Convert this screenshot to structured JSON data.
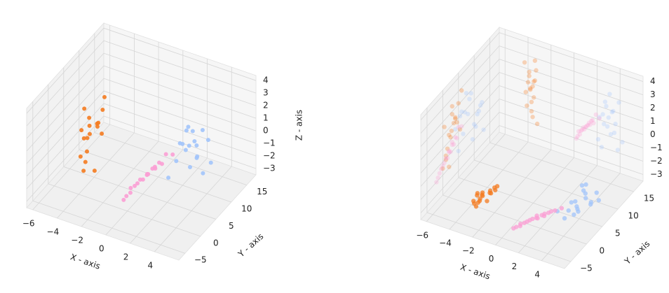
{
  "chart_data": [
    {
      "type": "scatter3d",
      "projections": false,
      "xlabel": "X - axis",
      "ylabel": "Y - axis",
      "zlabel": "Z - axis",
      "xlim": [
        -6.5,
        6
      ],
      "ylim": [
        -7,
        18
      ],
      "zlim": [
        -3.5,
        4.4
      ],
      "xticks": [
        {
          "value": -6,
          "label": "−6"
        },
        {
          "value": -4,
          "label": "−4"
        },
        {
          "value": -2,
          "label": "−2"
        },
        0,
        2,
        4
      ],
      "yticks": [
        {
          "value": -5,
          "label": "−5"
        },
        0,
        5,
        10,
        15
      ],
      "zticks": [
        {
          "value": -3,
          "label": "−3"
        },
        {
          "value": -2,
          "label": "−2"
        },
        {
          "value": -1,
          "label": "−1"
        },
        0,
        1,
        2,
        3,
        4
      ],
      "series": [
        {
          "color": "#f47b20",
          "x": [
            -3.8,
            -3.5,
            -4.1,
            -3.3,
            -3.9,
            -3.6,
            -4.2,
            -3.4,
            -3.7,
            -4.0,
            -3.6,
            -3.2,
            -3.9,
            -3.5,
            -4.3,
            -3.7,
            -3.4,
            -3.8
          ],
          "y": [
            2,
            4,
            1,
            5,
            3,
            0,
            2.5,
            6,
            1.5,
            3.5,
            4.5,
            2,
            0.5,
            5.5,
            3,
            1,
            4,
            2.8
          ],
          "z": [
            0.5,
            1.2,
            -0.8,
            2.1,
            1.8,
            -1.5,
            0.2,
            2.8,
            -0.4,
            1.0,
            0.8,
            -1.9,
            1.5,
            0.0,
            2.4,
            -1.1,
            1.3,
            0.6
          ]
        },
        {
          "color": "#a2c4fb",
          "x": [
            2.5,
            3.2,
            2.8,
            3.6,
            2.1,
            3.9,
            2.9,
            3.3,
            2.4,
            3.0,
            4.2,
            2.7,
            3.5,
            2.2,
            3.8,
            3.1,
            2.6,
            3.4
          ],
          "y": [
            8,
            10,
            6,
            12,
            5,
            9,
            11,
            7,
            13,
            4,
            10.5,
            8.5,
            6.5,
            12.5,
            9.5,
            7.5,
            11.5,
            5.5
          ],
          "z": [
            0.5,
            -0.8,
            1.2,
            0.1,
            -1.5,
            1.8,
            -0.3,
            0.9,
            -2.0,
            0.4,
            -1.1,
            1.5,
            -0.6,
            0.2,
            -1.8,
            2.2,
            -0.2,
            1.0
          ]
        },
        {
          "color": "#fb9fd4",
          "x": [
            0.8,
            1.3,
            0.5,
            1.6,
            0.2,
            1.1,
            1.9,
            0.6,
            1.4,
            0.9,
            2.2,
            0.3,
            1.0,
            1.7,
            0.4,
            1.2,
            0.7,
            1.5
          ],
          "y": [
            1,
            3,
            -1,
            4,
            -2,
            2,
            5,
            0,
            3.5,
            1.5,
            6,
            -1.5,
            2.5,
            4.5,
            -0.5,
            2,
            0.5,
            3
          ],
          "z": [
            -1.0,
            -0.5,
            -1.6,
            -0.2,
            -2.0,
            -0.8,
            0.3,
            -1.3,
            -0.6,
            -1.1,
            0.1,
            -1.8,
            -0.9,
            -0.4,
            -1.4,
            -0.7,
            -1.2,
            -0.3
          ]
        }
      ]
    },
    {
      "type": "scatter3d",
      "projections": true,
      "xlabel": "X - axis",
      "ylabel": "Y - axis",
      "xlim": [
        -6.5,
        6
      ],
      "ylim": [
        -7,
        18
      ],
      "zlim": [
        -3.5,
        4.4
      ],
      "xticks": [
        {
          "value": -6,
          "label": "−6"
        },
        {
          "value": -4,
          "label": "−4"
        },
        {
          "value": -2,
          "label": "−2"
        },
        0,
        2,
        4
      ],
      "yticks": [
        {
          "value": -5,
          "label": "−5"
        },
        0,
        5,
        10,
        15
      ],
      "zticks": [
        {
          "value": -3,
          "label": "−3"
        },
        {
          "value": -2,
          "label": "−2"
        },
        {
          "value": -1,
          "label": "−1"
        },
        0,
        1,
        2,
        3,
        4
      ],
      "series": [
        {
          "color": "#f47b20",
          "x": [
            -3.8,
            -3.5,
            -4.1,
            -3.3,
            -3.9,
            -3.6,
            -4.2,
            -3.4,
            -3.7,
            -4.0,
            -3.6,
            -3.2,
            -3.9,
            -3.5,
            -4.3,
            -3.7,
            -3.4,
            -3.8
          ],
          "y": [
            2,
            4,
            1,
            5,
            3,
            0,
            2.5,
            6,
            1.5,
            3.5,
            4.5,
            2,
            0.5,
            5.5,
            3,
            1,
            4,
            2.8
          ],
          "z": [
            0.5,
            1.2,
            -0.8,
            2.1,
            1.8,
            -1.5,
            0.2,
            2.8,
            -0.4,
            1.0,
            0.8,
            -1.9,
            1.5,
            0.0,
            2.4,
            -1.1,
            1.3,
            0.6
          ]
        },
        {
          "color": "#a2c4fb",
          "x": [
            2.5,
            3.2,
            2.8,
            3.6,
            2.1,
            3.9,
            2.9,
            3.3,
            2.4,
            3.0,
            4.2,
            2.7,
            3.5,
            2.2,
            3.8,
            3.1,
            2.6,
            3.4
          ],
          "y": [
            8,
            10,
            6,
            12,
            5,
            9,
            11,
            7,
            13,
            4,
            10.5,
            8.5,
            6.5,
            12.5,
            9.5,
            7.5,
            11.5,
            5.5
          ],
          "z": [
            0.5,
            -0.8,
            1.2,
            0.1,
            -1.5,
            1.8,
            -0.3,
            0.9,
            -2.0,
            0.4,
            -1.1,
            1.5,
            -0.6,
            0.2,
            -1.8,
            2.2,
            -0.2,
            1.0
          ]
        },
        {
          "color": "#fb9fd4",
          "x": [
            0.8,
            1.3,
            0.5,
            1.6,
            0.2,
            1.1,
            1.9,
            0.6,
            1.4,
            0.9,
            2.2,
            0.3,
            1.0,
            1.7,
            0.4,
            1.2,
            0.7,
            1.5
          ],
          "y": [
            1,
            3,
            -1,
            4,
            -2,
            2,
            5,
            0,
            3.5,
            1.5,
            6,
            -1.5,
            2.5,
            4.5,
            -0.5,
            2,
            0.5,
            3
          ],
          "z": [
            -1.0,
            -0.5,
            -1.6,
            -0.2,
            -2.0,
            -0.8,
            0.3,
            -1.3,
            -0.6,
            -1.1,
            0.1,
            -1.8,
            -0.9,
            -0.4,
            -1.4,
            -0.7,
            -1.2,
            -0.3
          ]
        }
      ]
    }
  ]
}
